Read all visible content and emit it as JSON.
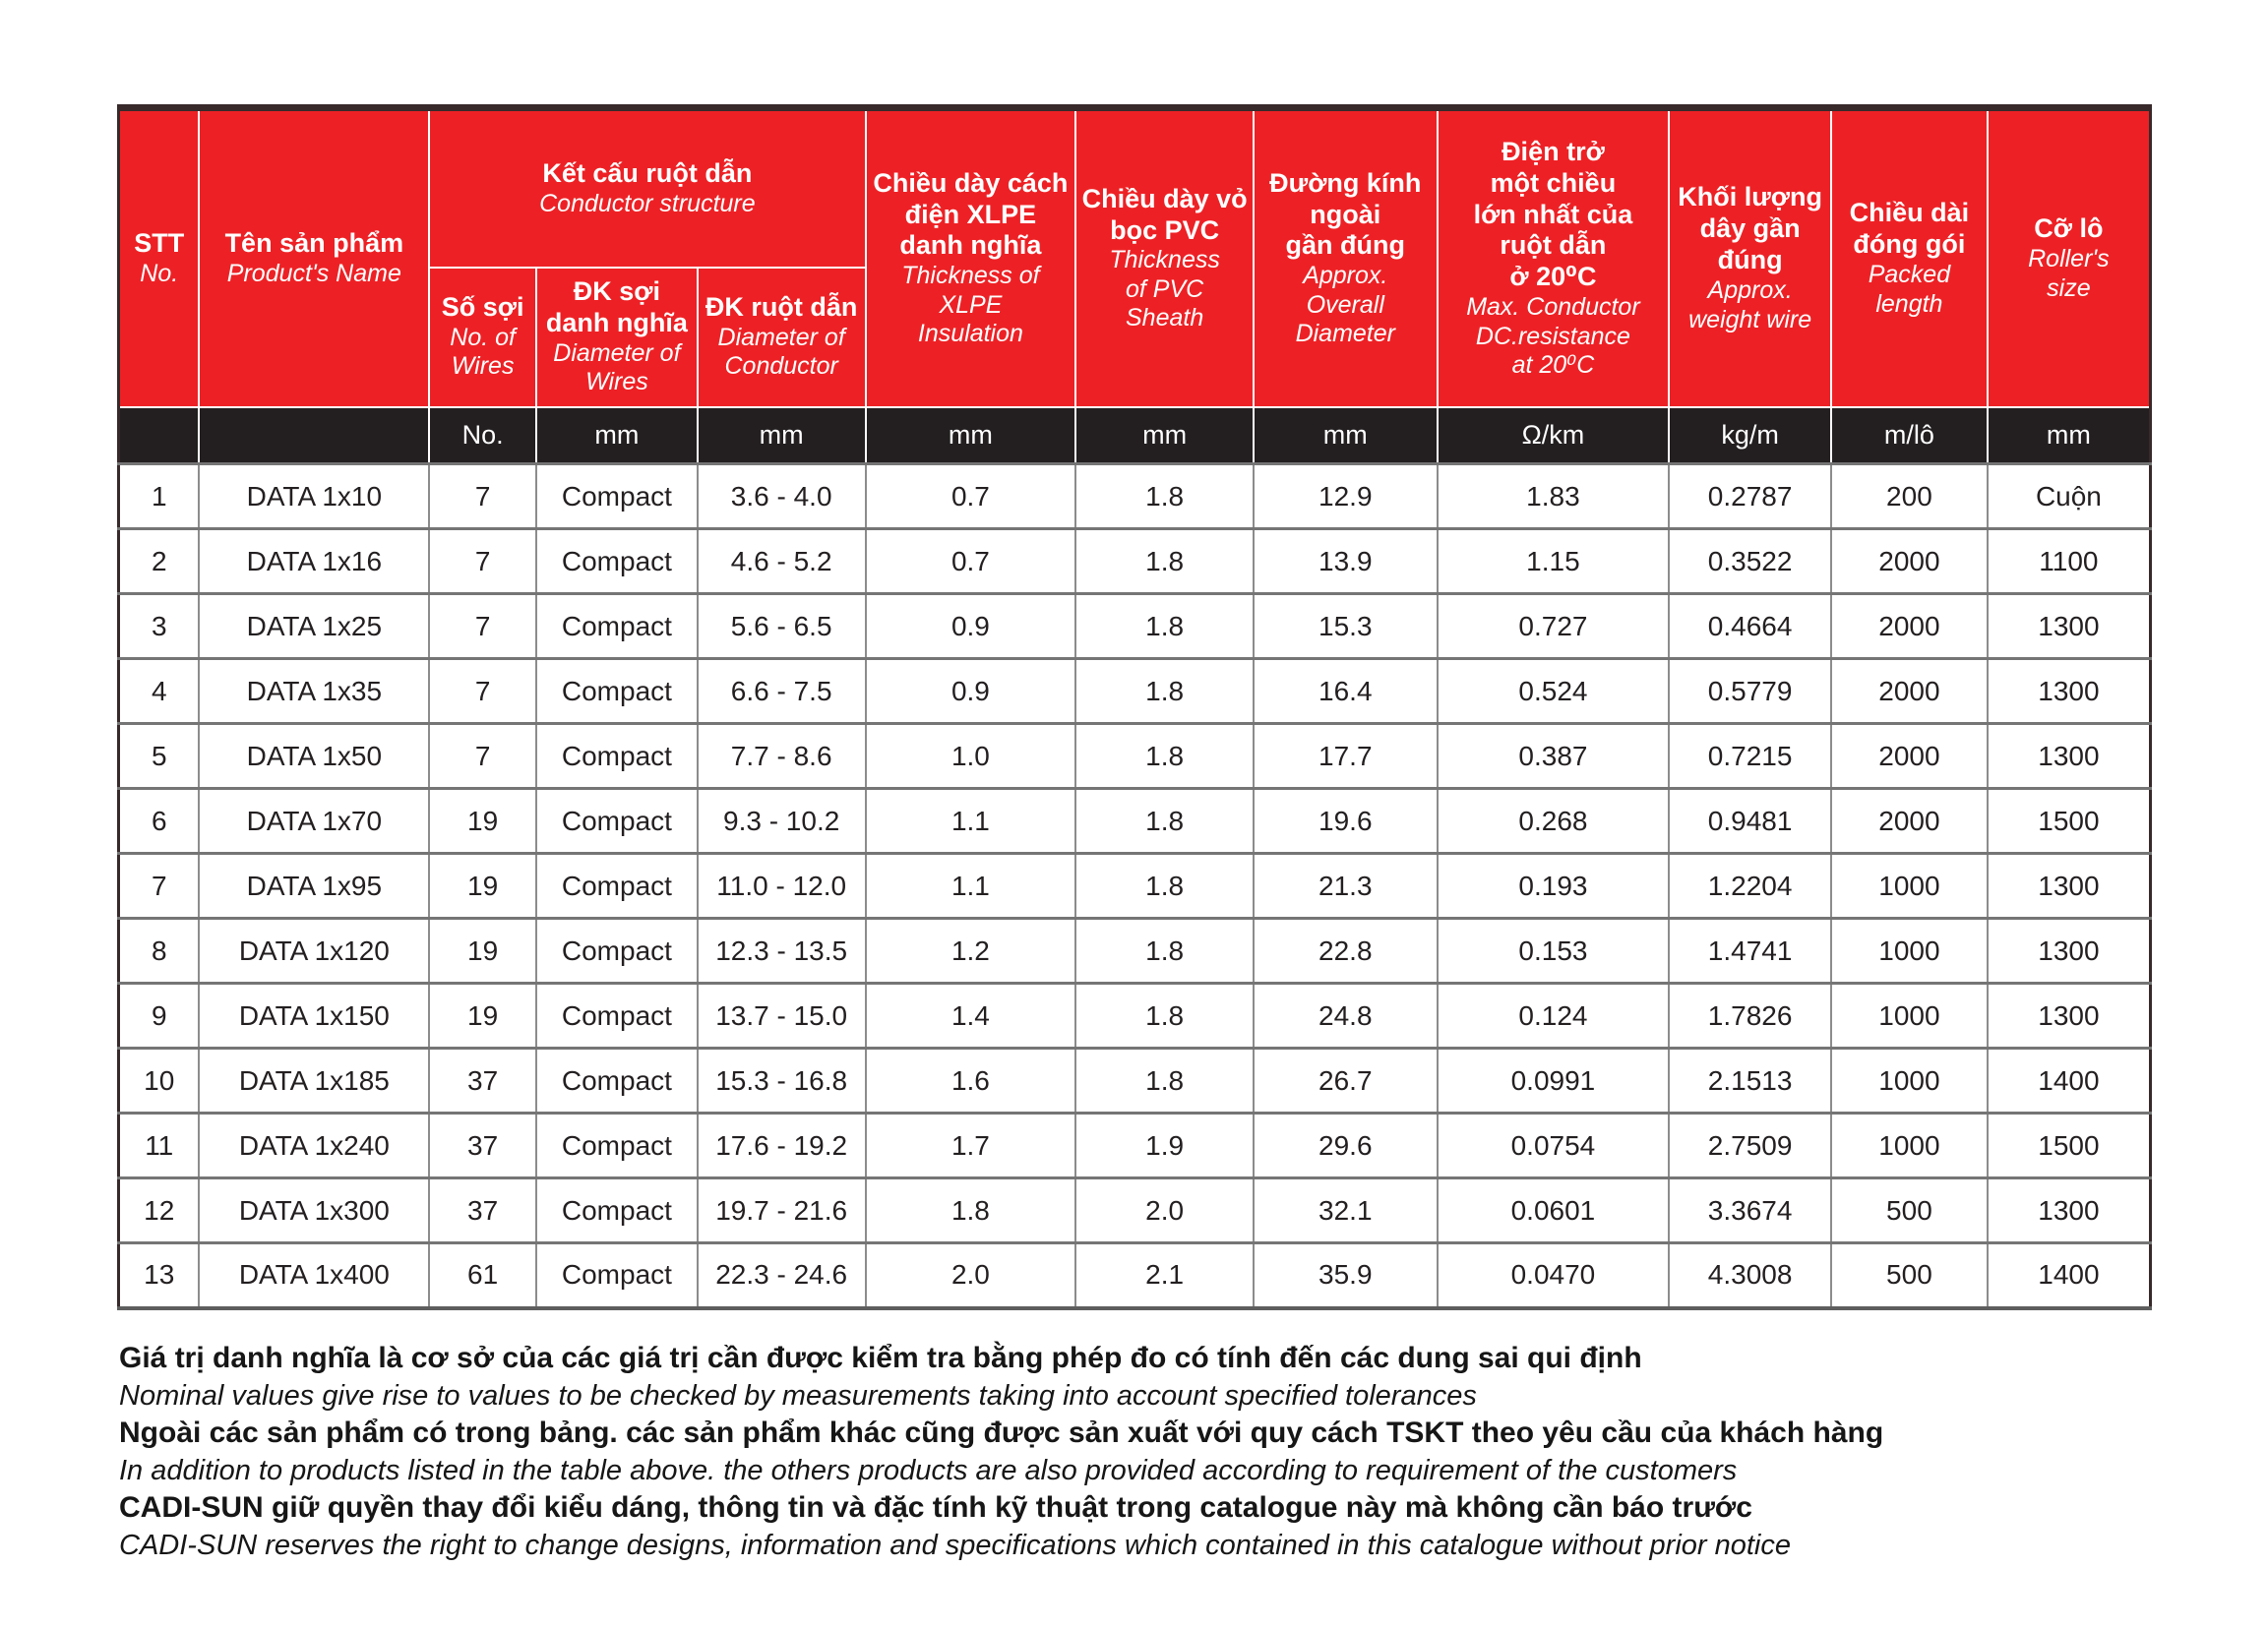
{
  "colors": {
    "header_red": "#ED2125",
    "units_band": "#231F20",
    "outer_border": "#38292A",
    "grid_line": "#7E7E7E",
    "text_dark": "#231F20"
  },
  "table": {
    "header": {
      "stt": {
        "vn": "STT",
        "en": "No."
      },
      "product_name": {
        "vn": "Tên sản phẩm",
        "en": "Product's Name"
      },
      "conductor_structure": {
        "vn": "Kết cấu ruột dẫn",
        "en": "Conductor structure"
      },
      "no_of_wires": {
        "vn": "Số sợi",
        "en": "No. of\nWires"
      },
      "diameter_of_wires": {
        "vn": "ĐK sợi\ndanh nghĩa",
        "en": "Diameter of\nWires"
      },
      "diameter_of_conductor": {
        "vn": "ĐK ruột dẫn",
        "en": "Diameter of\nConductor"
      },
      "xlpe_thickness": {
        "vn": "Chiều dày cách\nđiện XLPE\ndanh nghĩa",
        "en": "Thickness of\nXLPE\nInsulation"
      },
      "pvc_thickness": {
        "vn": "Chiều dày vỏ\nbọc PVC",
        "en": "Thickness\nof PVC\nSheath"
      },
      "overall_diameter": {
        "vn": "Đường kính\nngoài\ngần đúng",
        "en": "Approx.\nOverall\nDiameter"
      },
      "dc_resistance": {
        "vn": "Điện trở\nmột chiều\nlớn nhất của\nruột dẫn\nở 20⁰C",
        "en": "Max. Conductor\nDC.resistance\nat 20⁰C"
      },
      "weight": {
        "vn": "Khối lượng\ndây gần\nđúng",
        "en": "Approx.\nweight wire"
      },
      "packed_length": {
        "vn": "Chiều dài\nđóng gói",
        "en": "Packed\nlength"
      },
      "roller_size": {
        "vn": "Cỡ lô",
        "en": "Roller's\nsize"
      }
    },
    "units": [
      "",
      "",
      "No.",
      "mm",
      "mm",
      "mm",
      "mm",
      "mm",
      "Ω/km",
      "kg/m",
      "m/lô",
      "mm"
    ],
    "rows": [
      [
        "1",
        "DATA 1x10",
        "7",
        "Compact",
        "3.6 - 4.0",
        "0.7",
        "1.8",
        "12.9",
        "1.83",
        "0.2787",
        "200",
        "Cuộn"
      ],
      [
        "2",
        "DATA 1x16",
        "7",
        "Compact",
        "4.6 - 5.2",
        "0.7",
        "1.8",
        "13.9",
        "1.15",
        "0.3522",
        "2000",
        "1100"
      ],
      [
        "3",
        "DATA 1x25",
        "7",
        "Compact",
        "5.6 - 6.5",
        "0.9",
        "1.8",
        "15.3",
        "0.727",
        "0.4664",
        "2000",
        "1300"
      ],
      [
        "4",
        "DATA 1x35",
        "7",
        "Compact",
        "6.6 - 7.5",
        "0.9",
        "1.8",
        "16.4",
        "0.524",
        "0.5779",
        "2000",
        "1300"
      ],
      [
        "5",
        "DATA 1x50",
        "7",
        "Compact",
        "7.7 - 8.6",
        "1.0",
        "1.8",
        "17.7",
        "0.387",
        "0.7215",
        "2000",
        "1300"
      ],
      [
        "6",
        "DATA 1x70",
        "19",
        "Compact",
        "9.3 - 10.2",
        "1.1",
        "1.8",
        "19.6",
        "0.268",
        "0.9481",
        "2000",
        "1500"
      ],
      [
        "7",
        "DATA 1x95",
        "19",
        "Compact",
        "11.0 - 12.0",
        "1.1",
        "1.8",
        "21.3",
        "0.193",
        "1.2204",
        "1000",
        "1300"
      ],
      [
        "8",
        "DATA 1x120",
        "19",
        "Compact",
        "12.3 - 13.5",
        "1.2",
        "1.8",
        "22.8",
        "0.153",
        "1.4741",
        "1000",
        "1300"
      ],
      [
        "9",
        "DATA 1x150",
        "19",
        "Compact",
        "13.7 - 15.0",
        "1.4",
        "1.8",
        "24.8",
        "0.124",
        "1.7826",
        "1000",
        "1300"
      ],
      [
        "10",
        "DATA 1x185",
        "37",
        "Compact",
        "15.3 - 16.8",
        "1.6",
        "1.8",
        "26.7",
        "0.0991",
        "2.1513",
        "1000",
        "1400"
      ],
      [
        "11",
        "DATA 1x240",
        "37",
        "Compact",
        "17.6 - 19.2",
        "1.7",
        "1.9",
        "29.6",
        "0.0754",
        "2.7509",
        "1000",
        "1500"
      ],
      [
        "12",
        "DATA 1x300",
        "37",
        "Compact",
        "19.7 - 21.6",
        "1.8",
        "2.0",
        "32.1",
        "0.0601",
        "3.3674",
        "500",
        "1300"
      ],
      [
        "13",
        "DATA 1x400",
        "61",
        "Compact",
        "22.3 - 24.6",
        "2.0",
        "2.1",
        "35.9",
        "0.0470",
        "4.3008",
        "500",
        "1400"
      ]
    ]
  },
  "notes": [
    {
      "style": "bold-vn",
      "text": "Giá trị danh nghĩa là cơ sở của các giá trị cần được kiểm tra bằng phép đo có tính đến các dung sai qui định"
    },
    {
      "style": "italic-en",
      "text": "Nominal values give rise to values to be checked by measurements taking into account specified tolerances"
    },
    {
      "style": "bold-vn",
      "text": "Ngoài các sản phẩm có trong bảng. các sản phẩm khác cũng được sản xuất với quy cách TSKT theo yêu cầu của khách hàng"
    },
    {
      "style": "italic-en",
      "text": "In addition to products listed in the table above. the others products are also provided according to requirement of the customers"
    },
    {
      "style": "bold-vn",
      "text": "CADI-SUN giữ quyền thay đổi kiểu dáng, thông tin và đặc tính kỹ thuật trong catalogue này mà không cần báo trước"
    },
    {
      "style": "italic-en",
      "text": "CADI-SUN reserves the right to change designs, information and specifications which contained in this catalogue without prior notice"
    }
  ]
}
